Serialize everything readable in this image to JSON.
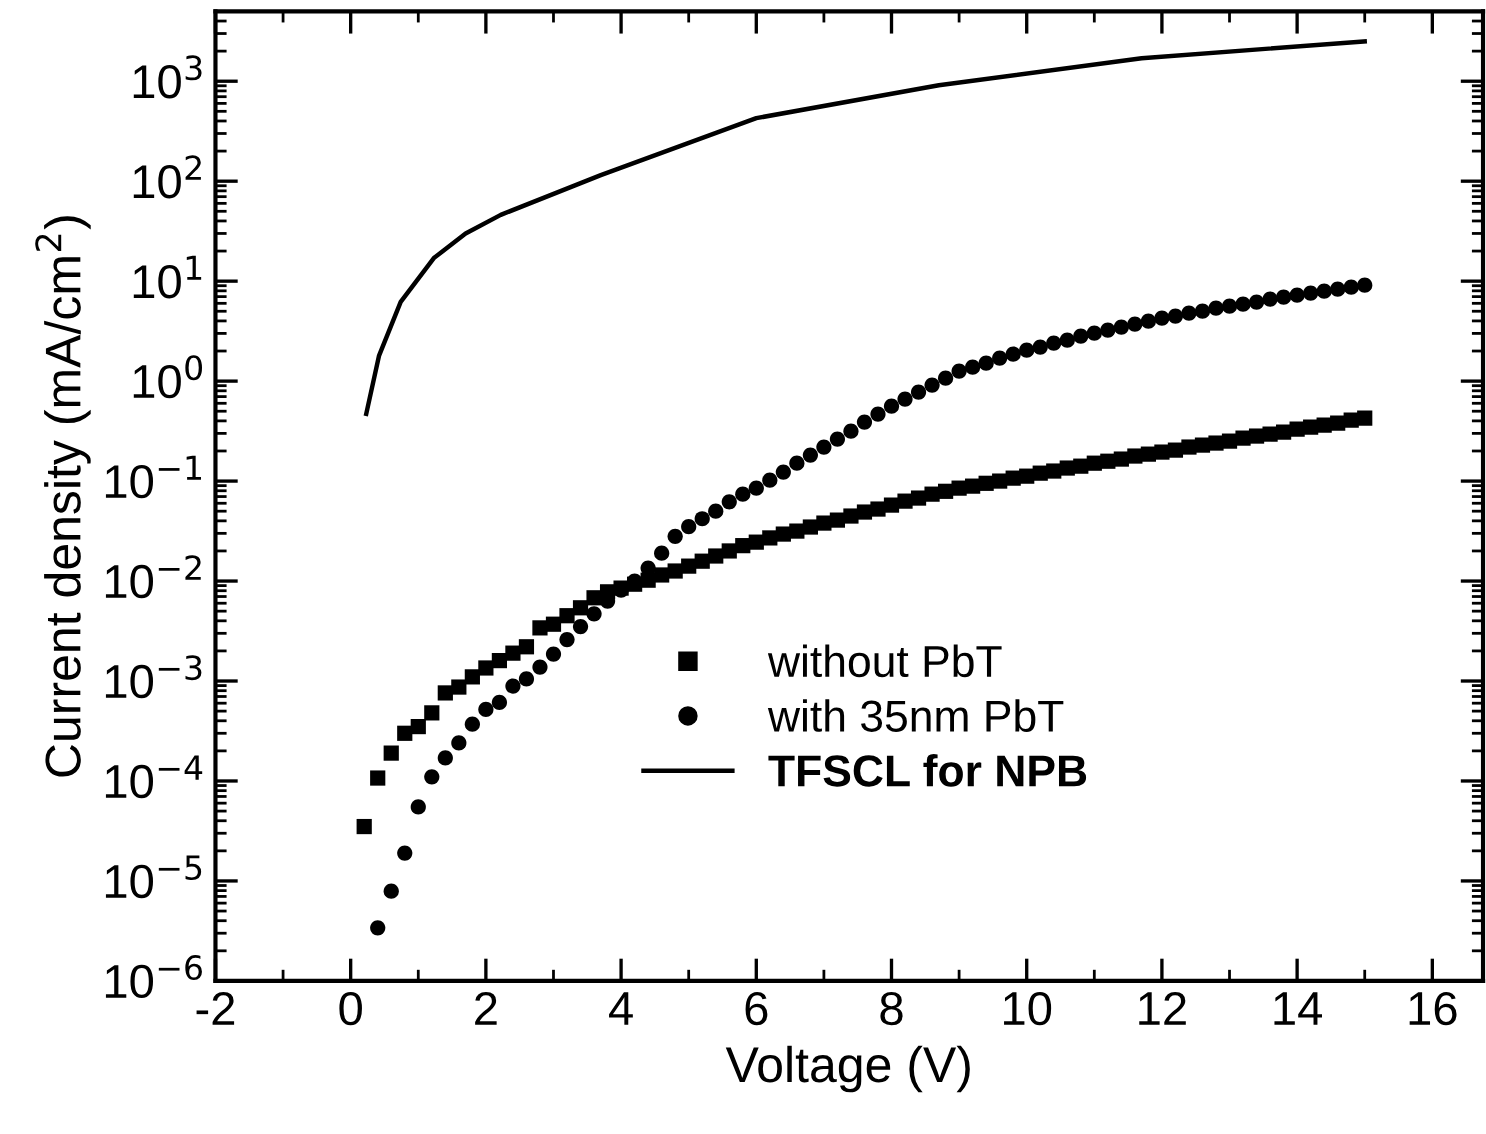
{
  "chart_data": {
    "type": "scatter",
    "xlabel": "Voltage (V)",
    "ylabel": "Current density (mA/cm$^{2}$)",
    "log": "y",
    "legend": "bottom right",
    "grid": false,
    "xlim": [
      -2,
      16.75
    ],
    "xticks": [
      -2,
      0,
      2,
      4,
      6,
      8,
      10,
      12,
      14,
      16
    ],
    "ylim": [
      1e-06,
      5000
    ],
    "yticks": [
      {
        "value": 1e-06,
        "label": "10$^{−6}$"
      },
      {
        "value": 1e-05,
        "label": "10$^{−5}$"
      },
      {
        "value": 0.0001,
        "label": "10$^{−4}$"
      },
      {
        "value": 0.001,
        "label": "10$^{−3}$"
      },
      {
        "value": 0.01,
        "label": "10$^{−2}$"
      },
      {
        "value": 0.1,
        "label": "10$^{−1}$"
      },
      {
        "value": 1,
        "label": "10$^{0}$"
      },
      {
        "value": 10,
        "label": "10$^{1}$"
      },
      {
        "value": 100,
        "label": "10$^{2}$"
      },
      {
        "value": 1000,
        "label": "10$^{3}$"
      }
    ],
    "series": [
      {
        "name": "without PbT",
        "marker": "square",
        "color": "#000000",
        "x": [
          0.2,
          0.4,
          0.6,
          0.8,
          1.0,
          1.2,
          1.4,
          1.6,
          1.8,
          2.0,
          2.2,
          2.4,
          2.6,
          2.8,
          3.0,
          3.2,
          3.4,
          3.6,
          3.8,
          4.0,
          4.2,
          4.4,
          4.6,
          4.8,
          5.0,
          5.2,
          5.4,
          5.6,
          5.8,
          6.0,
          6.2,
          6.4,
          6.6,
          6.8,
          7.0,
          7.2,
          7.4,
          7.6,
          7.8,
          8.0,
          8.2,
          8.4,
          8.6,
          8.8,
          9.0,
          9.2,
          9.4,
          9.6,
          9.8,
          10.0,
          10.2,
          10.4,
          10.6,
          10.8,
          11.0,
          11.2,
          11.4,
          11.6,
          11.8,
          12.0,
          12.2,
          12.4,
          12.6,
          12.8,
          13.0,
          13.2,
          13.4,
          13.6,
          13.8,
          14.0,
          14.2,
          14.4,
          14.6,
          14.8,
          15.0
        ],
        "values": [
          3.5e-05,
          0.000107,
          0.00019,
          0.0003,
          0.00035,
          0.00048,
          0.00076,
          0.00087,
          0.0011,
          0.00135,
          0.0016,
          0.0019,
          0.0022,
          0.0034,
          0.0037,
          0.0045,
          0.0054,
          0.0068,
          0.0078,
          0.0085,
          0.0093,
          0.0102,
          0.0115,
          0.0126,
          0.0141,
          0.0158,
          0.0178,
          0.02,
          0.0226,
          0.0245,
          0.027,
          0.0295,
          0.0316,
          0.0347,
          0.038,
          0.0407,
          0.0447,
          0.049,
          0.0525,
          0.0575,
          0.063,
          0.0676,
          0.074,
          0.079,
          0.085,
          0.089,
          0.095,
          0.1,
          0.107,
          0.112,
          0.12,
          0.126,
          0.135,
          0.141,
          0.151,
          0.158,
          0.166,
          0.178,
          0.186,
          0.195,
          0.204,
          0.219,
          0.229,
          0.24,
          0.251,
          0.269,
          0.282,
          0.295,
          0.309,
          0.331,
          0.347,
          0.363,
          0.38,
          0.407,
          0.427
        ]
      },
      {
        "name": "with 35nm PbT",
        "marker": "circle",
        "color": "#000000",
        "x": [
          0.4,
          0.6,
          0.8,
          1.0,
          1.2,
          1.4,
          1.6,
          1.8,
          2.0,
          2.2,
          2.4,
          2.6,
          2.8,
          3.0,
          3.2,
          3.4,
          3.6,
          3.8,
          4.0,
          4.2,
          4.4,
          4.6,
          4.8,
          5.0,
          5.2,
          5.4,
          5.6,
          5.8,
          6.0,
          6.2,
          6.4,
          6.6,
          6.8,
          7.0,
          7.2,
          7.4,
          7.6,
          7.8,
          8.0,
          8.2,
          8.4,
          8.6,
          8.8,
          9.0,
          9.2,
          9.4,
          9.6,
          9.8,
          10.0,
          10.2,
          10.4,
          10.6,
          10.8,
          11.0,
          11.2,
          11.4,
          11.6,
          11.8,
          12.0,
          12.2,
          12.4,
          12.6,
          12.8,
          13.0,
          13.2,
          13.4,
          13.6,
          13.8,
          14.0,
          14.2,
          14.4,
          14.6,
          14.8,
          15.0
        ],
        "values": [
          3.4e-06,
          7.9e-06,
          1.9e-05,
          5.5e-05,
          0.00011,
          0.00017,
          0.00024,
          0.00037,
          0.00052,
          0.00061,
          0.00089,
          0.00105,
          0.00138,
          0.00186,
          0.0026,
          0.0035,
          0.0047,
          0.0063,
          0.0081,
          0.01,
          0.0135,
          0.019,
          0.028,
          0.035,
          0.042,
          0.05,
          0.062,
          0.074,
          0.085,
          0.102,
          0.123,
          0.151,
          0.182,
          0.219,
          0.263,
          0.316,
          0.389,
          0.468,
          0.562,
          0.661,
          0.776,
          0.912,
          1.07,
          1.26,
          1.38,
          1.51,
          1.7,
          1.86,
          2.04,
          2.19,
          2.4,
          2.57,
          2.82,
          3.02,
          3.24,
          3.47,
          3.72,
          3.98,
          4.27,
          4.47,
          4.79,
          5.01,
          5.37,
          5.62,
          5.89,
          6.17,
          6.61,
          6.92,
          7.24,
          7.59,
          7.94,
          8.32,
          8.71,
          9.12
        ]
      },
      {
        "name": "TFSCL for NPB",
        "type": "line",
        "marker": "none",
        "line_style": "solid",
        "color": "#000000",
        "x": [
          0.23,
          0.42,
          0.74,
          1.23,
          1.7,
          2.22,
          3.7,
          6.0,
          8.7,
          11.7,
          15.0
        ],
        "values": [
          0.47,
          1.8,
          6.2,
          17,
          30,
          46,
          115,
          427,
          912,
          1700,
          2500
        ]
      }
    ]
  }
}
